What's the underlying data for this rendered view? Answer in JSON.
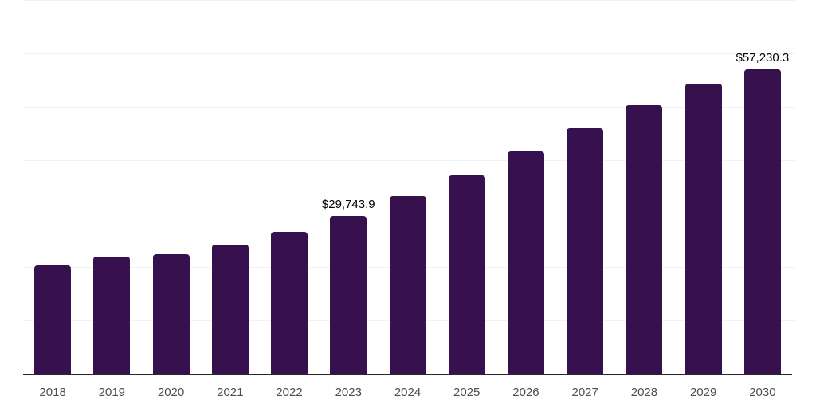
{
  "chart_data": {
    "type": "bar",
    "title": "",
    "xlabel": "",
    "ylabel": "",
    "categories": [
      "2018",
      "2019",
      "2020",
      "2021",
      "2022",
      "2023",
      "2024",
      "2025",
      "2026",
      "2027",
      "2028",
      "2029",
      "2030"
    ],
    "values": [
      20500,
      22100,
      22550,
      24350,
      26750,
      29743.9,
      33450,
      37350,
      41800,
      46150,
      50450,
      54500,
      57230.3
    ],
    "ylim": [
      0,
      70000
    ],
    "gridline_step": 10000,
    "grid": "horizontal",
    "legend_position": "none",
    "y_axis_labels_visible": false,
    "data_labels": [
      {
        "category": "2023",
        "text": "$29,743.9"
      },
      {
        "category": "2030",
        "text": "$57,230.3"
      }
    ],
    "colors": {
      "bar": "#37114D",
      "gridline": "#f2f2f2",
      "axis_line": "#262626",
      "tick_label": "#4d4d4d",
      "data_label": "#000000",
      "background": "#ffffff"
    }
  }
}
